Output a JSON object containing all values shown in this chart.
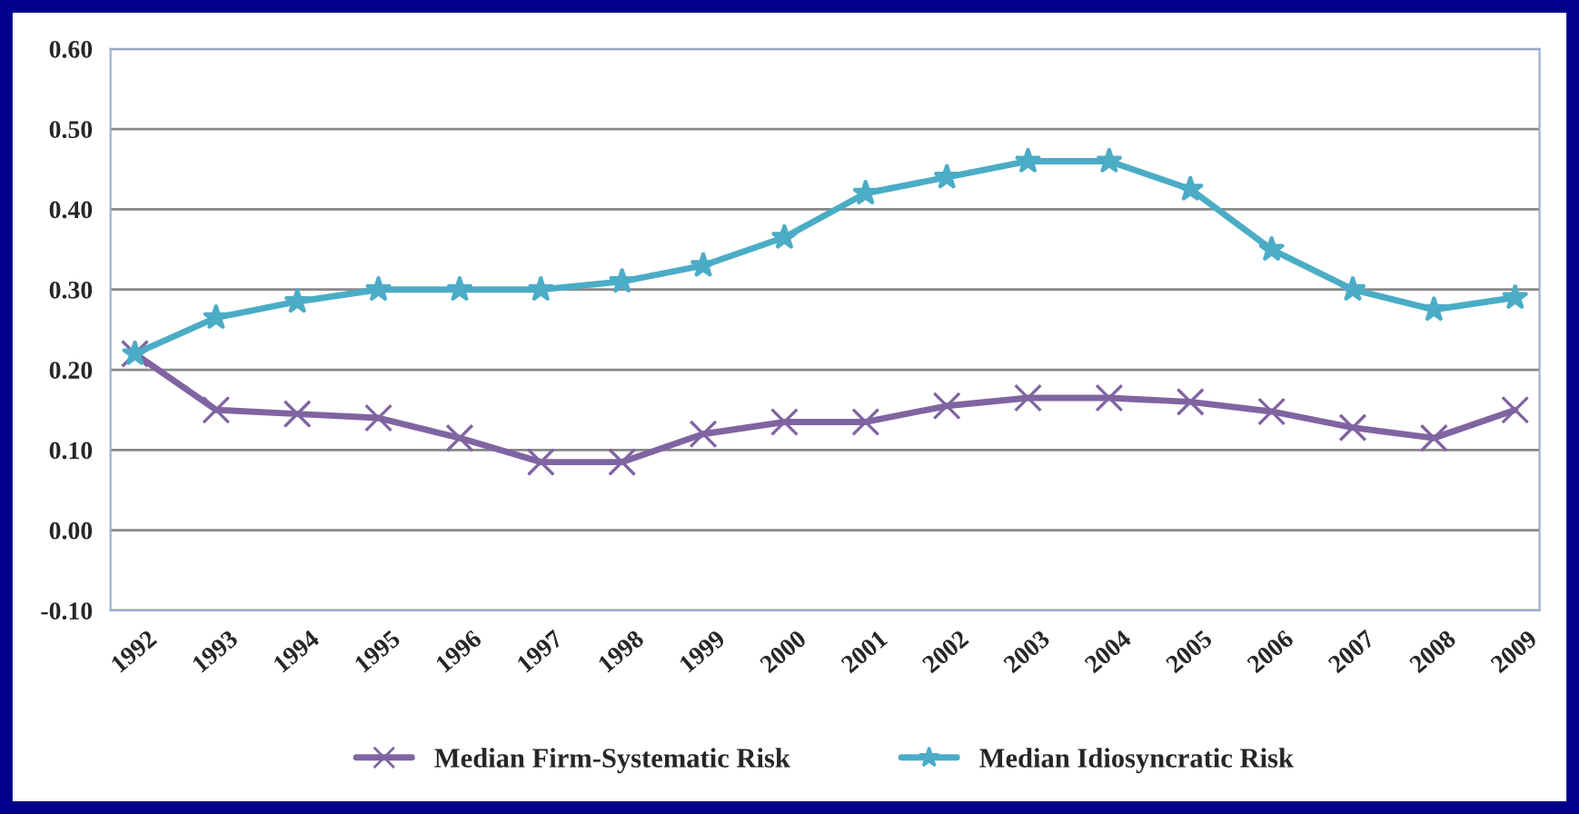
{
  "chart_data": {
    "type": "line",
    "categories": [
      "1992",
      "1993",
      "1994",
      "1995",
      "1996",
      "1997",
      "1998",
      "1999",
      "2000",
      "2001",
      "2002",
      "2003",
      "2004",
      "2005",
      "2006",
      "2007",
      "2008",
      "2009"
    ],
    "series": [
      {
        "name": "Median Firm-Systematic Risk",
        "color": "#8064a2",
        "marker": "cross",
        "values": [
          0.22,
          0.15,
          0.145,
          0.14,
          0.115,
          0.085,
          0.085,
          0.12,
          0.135,
          0.135,
          0.155,
          0.165,
          0.165,
          0.16,
          0.148,
          0.128,
          0.115,
          0.15
        ]
      },
      {
        "name": "Median Idiosyncratic Risk",
        "color": "#4bacc6",
        "marker": "star",
        "values": [
          0.22,
          0.265,
          0.285,
          0.3,
          0.3,
          0.3,
          0.31,
          0.33,
          0.365,
          0.42,
          0.44,
          0.46,
          0.46,
          0.425,
          0.35,
          0.3,
          0.275,
          0.29
        ]
      }
    ],
    "ylim": [
      -0.1,
      0.6
    ],
    "yticks": [
      {
        "value": -0.1,
        "label": "-0.10"
      },
      {
        "value": 0.0,
        "label": "0.00"
      },
      {
        "value": 0.1,
        "label": "0.10"
      },
      {
        "value": 0.2,
        "label": "0.20"
      },
      {
        "value": 0.3,
        "label": "0.30"
      },
      {
        "value": 0.4,
        "label": "0.40"
      },
      {
        "value": 0.5,
        "label": "0.50"
      },
      {
        "value": 0.6,
        "label": "0.60"
      }
    ],
    "grid": "y",
    "legend": "bottom",
    "line_style": "solid"
  }
}
